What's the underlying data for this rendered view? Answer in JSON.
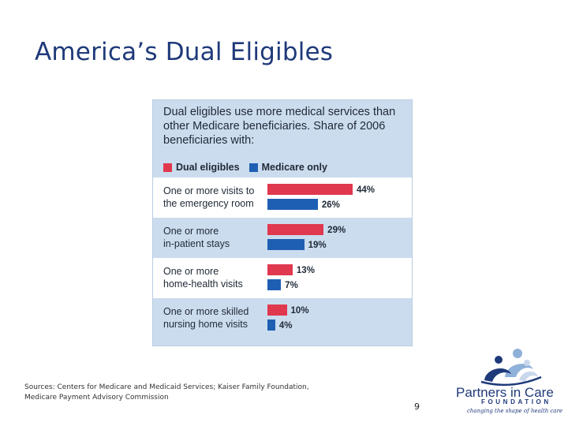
{
  "slide": {
    "title": "America’s Dual Eligibles",
    "sources_line1": "Sources:  Centers for Medicare and Medicaid Services; Kaiser Family Foundation,",
    "sources_line2": "Medicare Payment Advisory Commission",
    "page_number": "9"
  },
  "logo": {
    "name": "Partners in Care",
    "foundation": "FOUNDATION",
    "tagline": "changing the shape of health care"
  },
  "colors": {
    "dual": "#e0384f",
    "medicare": "#1f5fb3",
    "title": "#1f3a7a"
  },
  "chart_data": {
    "type": "bar",
    "orientation": "horizontal",
    "title": "Dual eligibles use more medical services than other Medicare beneficiaries. Share of 2006 beneficiaries with:",
    "title_lines": [
      "Dual eligibles use more medical services than",
      "other Medicare beneficiaries. Share of 2006",
      "beneficiaries with:"
    ],
    "categories": [
      [
        "One or more visits to",
        "the emergency room"
      ],
      [
        "One or more",
        "in-patient stays"
      ],
      [
        "One or more",
        "home-health visits"
      ],
      [
        "One or more skilled",
        "nursing home visits"
      ]
    ],
    "series": [
      {
        "name": "Dual eligibles",
        "values": [
          44,
          29,
          13,
          10
        ],
        "labels": [
          "44%",
          "29%",
          "13%",
          "10%"
        ]
      },
      {
        "name": "Medicare only",
        "values": [
          26,
          19,
          7,
          4
        ],
        "labels": [
          "26%",
          "19%",
          "7%",
          "4%"
        ]
      }
    ],
    "unit": "%",
    "xlim": [
      0,
      44
    ]
  }
}
